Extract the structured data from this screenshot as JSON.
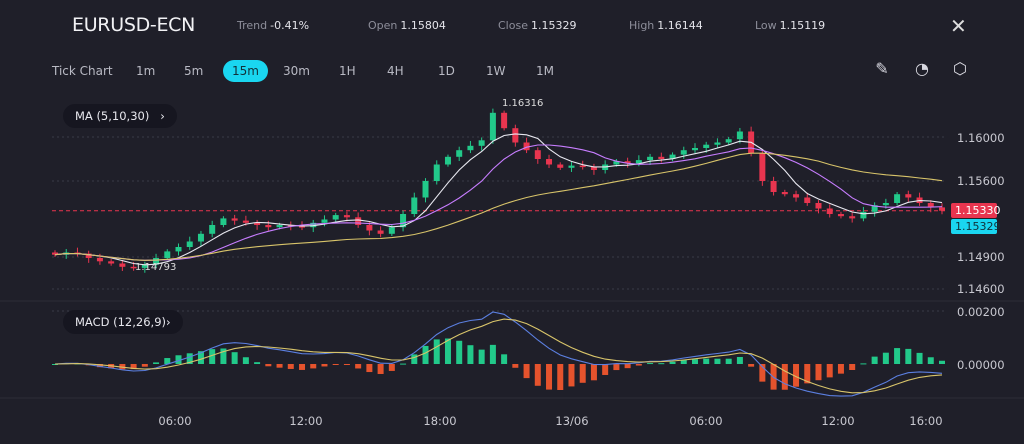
{
  "header": {
    "symbol": "EURUSD-ECN",
    "trend_label": "Trend",
    "trend": "-0.41%",
    "open_label": "Open",
    "open": "1.15804",
    "close_label": "Close",
    "close": "1.15329",
    "high_label": "High",
    "high": "1.16144",
    "low_label": "Low",
    "low": "1.15119"
  },
  "timeframes": [
    "Tick Chart",
    "1m",
    "5m",
    "15m",
    "30m",
    "1H",
    "4H",
    "1D",
    "1W",
    "1M"
  ],
  "active_timeframe": "15m",
  "icons": {
    "draw": "pencil-icon",
    "reset": "timer-icon",
    "settings": "hexagon-gear-icon",
    "close": "close-icon"
  },
  "indicators": {
    "ma": "MA (5,10,30)",
    "ma_chevron": "›",
    "macd": "MACD (12,26,9)",
    "macd_chevron": "›"
  },
  "annotations": {
    "max": "1.16316",
    "min": "1.14793"
  },
  "price_axis": [
    "1.16000",
    "1.15600",
    "1.14900",
    "1.14600"
  ],
  "last_price_tag": "1.15330",
  "close_price_tag": "1.15329",
  "macd_axis": [
    "0.00200",
    "0.00000"
  ],
  "time_axis": [
    "06:00",
    "12:00",
    "18:00",
    "13/06",
    "06:00",
    "12:00",
    "16:00"
  ],
  "colors": {
    "up": "#22c98a",
    "down": "#e8354f",
    "accent": "#1ad6f0",
    "ma5": "#e8e8f0",
    "ma10": "#c77dff",
    "ma30": "#d8c46a",
    "macd": "#5b7fe0",
    "signal": "#d8c46a",
    "hist_neg": "#e5532d"
  },
  "chart_data": {
    "type": "candlestick",
    "ylim": [
      1.1455,
      1.1635
    ],
    "closes": [
      1.1493,
      1.1495,
      1.1494,
      1.149,
      1.1487,
      1.1485,
      1.1482,
      1.1481,
      1.1484,
      1.149,
      1.1496,
      1.15,
      1.1505,
      1.1512,
      1.152,
      1.1526,
      1.1524,
      1.1522,
      1.152,
      1.1518,
      1.152,
      1.1519,
      1.1518,
      1.1522,
      1.1525,
      1.1529,
      1.1527,
      1.152,
      1.1515,
      1.1512,
      1.1518,
      1.153,
      1.1545,
      1.156,
      1.1575,
      1.1582,
      1.1588,
      1.1592,
      1.1597,
      1.1622,
      1.1608,
      1.1595,
      1.1588,
      1.158,
      1.1575,
      1.1572,
      1.1574,
      1.1573,
      1.157,
      1.1575,
      1.1578,
      1.1576,
      1.1579,
      1.1582,
      1.158,
      1.1584,
      1.1588,
      1.159,
      1.1593,
      1.1595,
      1.1598,
      1.1605,
      1.1585,
      1.156,
      1.155,
      1.1548,
      1.1545,
      1.154,
      1.1535,
      1.153,
      1.1528,
      1.1526,
      1.1532,
      1.1538,
      1.154,
      1.1548,
      1.1545,
      1.154,
      1.1536,
      1.1533
    ]
  }
}
